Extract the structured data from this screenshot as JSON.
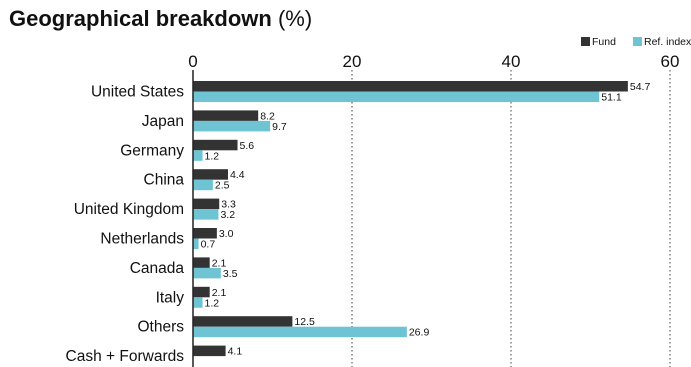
{
  "chart_data": {
    "type": "bar",
    "orientation": "horizontal",
    "title": "Geographical breakdown",
    "title_suffix": "(%)",
    "categories": [
      "United States",
      "Japan",
      "Germany",
      "China",
      "United Kingdom",
      "Netherlands",
      "Canada",
      "Italy",
      "Others",
      "Cash + Forwards"
    ],
    "series": [
      {
        "name": "Fund",
        "color": "#333333",
        "values": [
          54.7,
          8.2,
          5.6,
          4.4,
          3.3,
          3.0,
          2.1,
          2.1,
          12.5,
          4.1
        ]
      },
      {
        "name": "Ref. index",
        "color": "#6fc4d3",
        "values": [
          51.1,
          9.7,
          1.2,
          2.5,
          3.2,
          0.7,
          3.5,
          1.2,
          26.9,
          null
        ]
      }
    ],
    "xlim": [
      0,
      60
    ],
    "xticks": [
      0,
      20,
      40,
      60
    ],
    "value_labels": [
      [
        "54.7",
        "8.2",
        "5.6",
        "4.4",
        "3.3",
        "3.0",
        "2.1",
        "2.1",
        "12.5",
        "4.1"
      ],
      [
        "51.1",
        "9.7",
        "1.2",
        "2.5",
        "3.2",
        "0.7",
        "3.5",
        "1.2",
        "26.9",
        ""
      ]
    ],
    "grid": "vertical dotted",
    "legend_position": "top-right",
    "xlabel": "",
    "ylabel": ""
  }
}
